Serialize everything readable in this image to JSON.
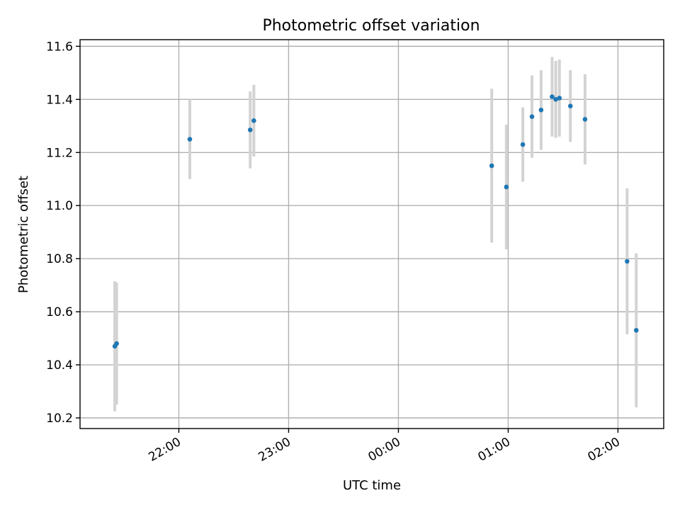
{
  "chart_data": {
    "type": "scatter",
    "title": "Photometric offset variation",
    "xlabel": "UTC time",
    "ylabel": "Photometric offset",
    "xlim": [
      "21:06",
      "02:25"
    ],
    "ylim": [
      10.16,
      11.625
    ],
    "x_ticks": [
      "22:00",
      "23:00",
      "00:00",
      "01:00",
      "02:00"
    ],
    "y_ticks": [
      "10.2",
      "10.4",
      "10.6",
      "10.8",
      "11.0",
      "11.2",
      "11.4",
      "11.6"
    ],
    "grid": true,
    "colors": {
      "points": "#1f77b4",
      "errorbars": "#d3d3d3",
      "grid": "#b0b0b0"
    },
    "series": [
      {
        "points": [
          {
            "x": "21:25",
            "y": 10.47,
            "err": 0.245
          },
          {
            "x": "21:26",
            "y": 10.48,
            "err": 0.23
          },
          {
            "x": "22:06",
            "y": 11.25,
            "err": 0.15
          },
          {
            "x": "22:39",
            "y": 11.285,
            "err": 0.145
          },
          {
            "x": "22:41",
            "y": 11.32,
            "err": 0.135
          },
          {
            "x": "00:51",
            "y": 11.15,
            "err": 0.29
          },
          {
            "x": "00:59",
            "y": 11.07,
            "err": 0.235
          },
          {
            "x": "01:08",
            "y": 11.23,
            "err": 0.14
          },
          {
            "x": "01:13",
            "y": 11.335,
            "err": 0.155
          },
          {
            "x": "01:18",
            "y": 11.36,
            "err": 0.15
          },
          {
            "x": "01:24",
            "y": 11.41,
            "err": 0.15
          },
          {
            "x": "01:26",
            "y": 11.4,
            "err": 0.145
          },
          {
            "x": "01:28",
            "y": 11.405,
            "err": 0.145
          },
          {
            "x": "01:34",
            "y": 11.375,
            "err": 0.135
          },
          {
            "x": "01:42",
            "y": 11.325,
            "err": 0.17
          },
          {
            "x": "02:05",
            "y": 10.79,
            "err": 0.275
          },
          {
            "x": "02:10",
            "y": 10.53,
            "err": 0.29
          }
        ]
      }
    ]
  }
}
